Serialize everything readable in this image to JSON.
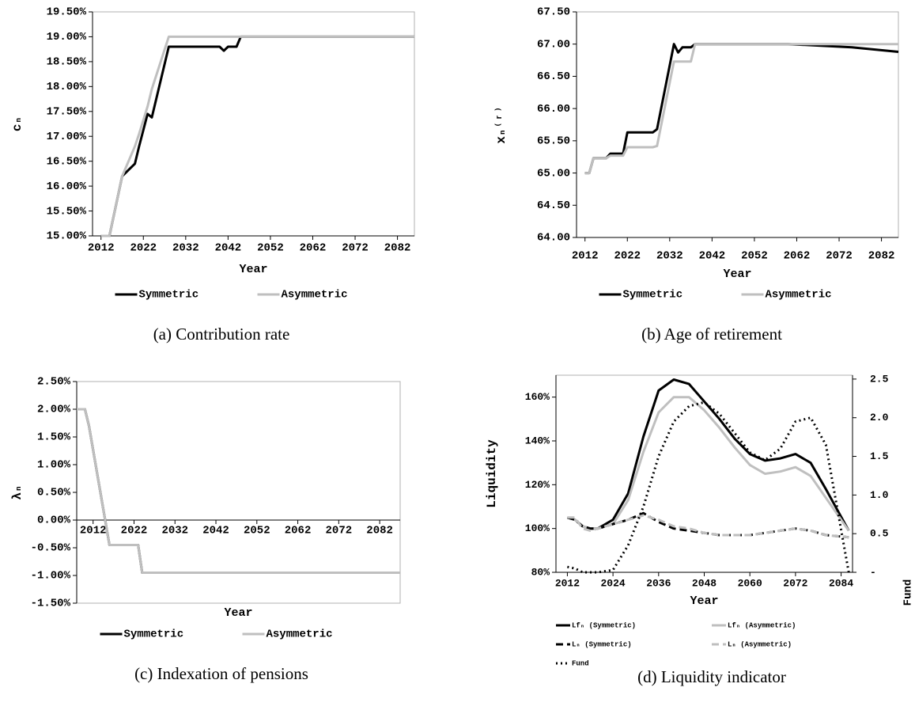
{
  "chart_data": [
    {
      "type": "line",
      "caption": "(a) Contribution rate",
      "xlabel": "Year",
      "ylabel": "cₙ",
      "xlim": [
        2010,
        2086
      ],
      "xticks": [
        2012,
        2022,
        2032,
        2042,
        2052,
        2062,
        2072,
        2082
      ],
      "ylim": [
        15,
        19.5
      ],
      "yticks": [
        {
          "value": 15,
          "label": "15.00%"
        },
        {
          "value": 15.5,
          "label": "15.50%"
        },
        {
          "value": 16,
          "label": "16.00%"
        },
        {
          "value": 16.5,
          "label": "16.50%"
        },
        {
          "value": 17,
          "label": "17.00%"
        },
        {
          "value": 17.5,
          "label": "17.50%"
        },
        {
          "value": 18,
          "label": "18.00%"
        },
        {
          "value": 18.5,
          "label": "18.50%"
        },
        {
          "value": 19,
          "label": "19.00%"
        },
        {
          "value": 19.5,
          "label": "19.50%"
        }
      ],
      "x": [
        2012,
        2014,
        2017,
        2020,
        2021,
        2023,
        2024,
        2028,
        2040,
        2041,
        2042,
        2044,
        2045,
        2086
      ],
      "series": [
        {
          "name": "Symmetric",
          "color": "#000000",
          "style": "solid",
          "values": [
            15,
            15,
            16.2,
            16.45,
            16.8,
            17.45,
            17.38,
            18.8,
            18.8,
            18.72,
            18.8,
            18.8,
            19,
            19
          ]
        },
        {
          "name": "Asymmetric",
          "color": "#bfbfbf",
          "style": "solid",
          "values": [
            15,
            15,
            16.2,
            16.8,
            17.05,
            17.6,
            17.95,
            19,
            19,
            19,
            19,
            19,
            19,
            19
          ]
        }
      ],
      "legend": "bottom"
    },
    {
      "type": "line",
      "caption": "(b) Age of retirement",
      "xlabel": "Year",
      "ylabel": "xₙ⁽ʳ⁾",
      "xlim": [
        2010,
        2086
      ],
      "xticks": [
        2012,
        2022,
        2032,
        2042,
        2052,
        2062,
        2072,
        2082
      ],
      "ylim": [
        64,
        67.5
      ],
      "yticks": [
        {
          "value": 64,
          "label": "64.00"
        },
        {
          "value": 64.5,
          "label": "64.50"
        },
        {
          "value": 65,
          "label": "65.00"
        },
        {
          "value": 65.5,
          "label": "65.50"
        },
        {
          "value": 66,
          "label": "66.00"
        },
        {
          "value": 66.5,
          "label": "66.50"
        },
        {
          "value": 67,
          "label": "67.00"
        },
        {
          "value": 67.5,
          "label": "67.50"
        }
      ],
      "x": [
        2012,
        2013,
        2014,
        2017,
        2018,
        2021,
        2022,
        2028,
        2029,
        2033,
        2034,
        2035,
        2037,
        2038,
        2060,
        2075,
        2086
      ],
      "series": [
        {
          "name": "Symmetric",
          "color": "#000000",
          "style": "solid",
          "values": [
            65,
            65,
            65.23,
            65.23,
            65.3,
            65.3,
            65.63,
            65.63,
            65.68,
            67,
            66.87,
            66.95,
            66.95,
            67,
            67,
            66.95,
            66.88
          ]
        },
        {
          "name": "Asymmetric",
          "color": "#bfbfbf",
          "style": "solid",
          "values": [
            65,
            65,
            65.23,
            65.23,
            65.27,
            65.27,
            65.4,
            65.4,
            65.42,
            66.73,
            66.73,
            66.73,
            66.73,
            67,
            67,
            67,
            67
          ]
        }
      ],
      "legend": "bottom"
    },
    {
      "type": "line",
      "caption": "(c) Indexation of pensions",
      "xlabel": "Year",
      "ylabel": "λₙ",
      "xlim": [
        2008,
        2087
      ],
      "xticks": [
        2012,
        2022,
        2032,
        2042,
        2052,
        2062,
        2072,
        2082
      ],
      "xaxis_crosses": 0,
      "ylim": [
        -1.5,
        2.5
      ],
      "yticks": [
        {
          "value": -1.5,
          "label": "-1.50%"
        },
        {
          "value": -1,
          "label": "-1.00%"
        },
        {
          "value": -0.5,
          "label": "-0.50%"
        },
        {
          "value": 0,
          "label": "0.00%"
        },
        {
          "value": 0.5,
          "label": "0.50%"
        },
        {
          "value": 1,
          "label": "1.00%"
        },
        {
          "value": 1.5,
          "label": "1.50%"
        },
        {
          "value": 2,
          "label": "2.00%"
        },
        {
          "value": 2.5,
          "label": "2.50%"
        }
      ],
      "x": [
        2008,
        2010,
        2011,
        2016,
        2023,
        2024,
        2087
      ],
      "series": [
        {
          "name": "Symmetric",
          "color": "#000000",
          "style": "solid",
          "values": [
            2,
            2,
            1.7,
            -0.45,
            -0.45,
            -0.95,
            -0.95
          ]
        },
        {
          "name": "Asymmetric",
          "color": "#bfbfbf",
          "style": "solid",
          "values": [
            2,
            2,
            1.7,
            -0.45,
            -0.45,
            -0.95,
            -0.95
          ]
        }
      ],
      "legend": "bottom"
    },
    {
      "type": "line",
      "caption": "(d) Liquidity indicator",
      "xlabel": "Year",
      "ylabel": "Liquidity",
      "y2label": "Fund",
      "xlim": [
        2009,
        2087
      ],
      "xticks": [
        2012,
        2024,
        2036,
        2048,
        2060,
        2072,
        2084
      ],
      "ylim": [
        80,
        170
      ],
      "yticks": [
        {
          "value": 80,
          "label": "80%"
        },
        {
          "value": 100,
          "label": "100%"
        },
        {
          "value": 120,
          "label": "120%"
        },
        {
          "value": 140,
          "label": "140%"
        },
        {
          "value": 160,
          "label": "160%"
        }
      ],
      "y2lim": [
        0,
        2.55
      ],
      "y2ticks": [
        {
          "value": 0,
          "label": "-"
        },
        0.5,
        {
          "value": 1,
          "label": "1.0"
        },
        1.5,
        {
          "value": 2,
          "label": "2.0"
        },
        2.5
      ],
      "x": [
        2012,
        2014,
        2016,
        2018,
        2020,
        2024,
        2028,
        2032,
        2036,
        2040,
        2044,
        2048,
        2052,
        2056,
        2060,
        2064,
        2068,
        2072,
        2076,
        2080,
        2086
      ],
      "series": [
        {
          "name": "Lfₙ (Symmetric)",
          "color": "#000000",
          "style": "solid",
          "values": [
            105,
            104,
            101,
            100,
            100,
            104,
            116,
            142,
            163,
            168,
            166,
            158,
            150,
            141,
            134,
            131,
            132,
            134,
            130,
            118,
            99
          ]
        },
        {
          "name": "Lfₙ (Asymmetric)",
          "color": "#bfbfbf",
          "style": "solid",
          "values": [
            105,
            104,
            101,
            100,
            100,
            102,
            113,
            135,
            153,
            160,
            160,
            154,
            146,
            137,
            129,
            125,
            126,
            128,
            124,
            114,
            99
          ]
        },
        {
          "name": "Lₙ (Symmetric)",
          "color": "#000000",
          "style": "dashed",
          "values": [
            105,
            104,
            101,
            100,
            100,
            102,
            104,
            107,
            103,
            100,
            99,
            98,
            97,
            97,
            97,
            98,
            99,
            100,
            99,
            97,
            96
          ]
        },
        {
          "name": "Lₙ (Asymmetric)",
          "color": "#bfbfbf",
          "style": "dashed",
          "values": [
            105,
            105,
            100,
            99,
            100,
            102,
            104,
            106,
            104,
            101,
            100,
            98,
            97,
            97,
            97,
            98,
            99,
            100,
            99,
            97,
            96
          ]
        },
        {
          "name": "Fund",
          "color": "#000000",
          "style": "dotted",
          "axis": "y2",
          "values": [
            0.07,
            0.05,
            0,
            0,
            0,
            0.03,
            0.35,
            0.85,
            1.5,
            1.95,
            2.15,
            2.2,
            2.05,
            1.8,
            1.55,
            1.45,
            1.6,
            1.95,
            2.0,
            1.65,
            0
          ]
        }
      ],
      "legend": "bottom"
    }
  ]
}
